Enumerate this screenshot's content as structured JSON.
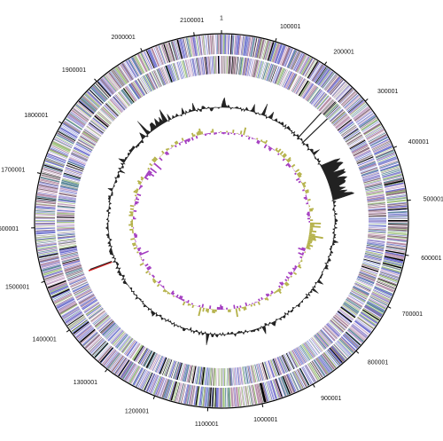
{
  "genome_map": {
    "position_labels": [
      "1",
      "100001",
      "200001",
      "300001",
      "400001",
      "500001",
      "600001",
      "700001",
      "800001",
      "900001",
      "1000001",
      "1100001",
      "1200001",
      "1300001",
      "1400001",
      "1500001",
      "1600001",
      "1700001",
      "1800001",
      "1900001",
      "2000001",
      "2100001"
    ],
    "colors": {
      "backbone": "#000000",
      "gc_content": "#222222",
      "gc_skew_positive": "#b5b24a",
      "gc_skew_negative": "#a33cc0",
      "rna_highlight": "#d42020",
      "feature_palette": [
        "#7b84d1",
        "#9a8fd0",
        "#6e6ecf",
        "#b58aa3",
        "#8c6f7e",
        "#a0c27f",
        "#5e8a9a",
        "#c7a6c8",
        "#000000",
        "#8e8e8e"
      ]
    }
  }
}
